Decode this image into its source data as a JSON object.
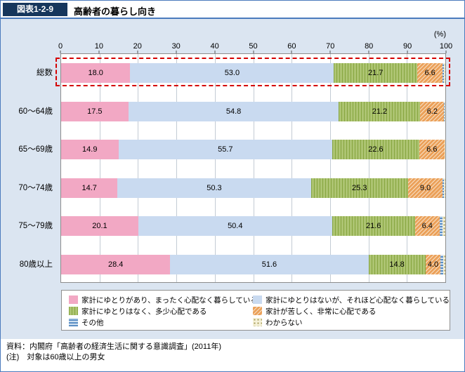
{
  "page": {
    "figure_label": "図表1-2-9",
    "title": "高齢者の暮らし向き"
  },
  "chart_data": {
    "type": "bar",
    "stacked": true,
    "orientation": "horizontal",
    "unit": "(%)",
    "xlim": [
      0,
      100
    ],
    "x_ticks": [
      0,
      10,
      20,
      30,
      40,
      50,
      60,
      70,
      80,
      90,
      100
    ],
    "grid": true,
    "legend_position": "bottom",
    "categories": [
      "総数",
      "60〜64歳",
      "65〜69歳",
      "70〜74歳",
      "75〜79歳",
      "80歳以上"
    ],
    "series": [
      {
        "name": "家計にゆとりがあり、まったく心配なく暮らしている",
        "class": "seg-pink",
        "color": "#f2a8c4",
        "values": [
          18.0,
          17.5,
          14.9,
          14.7,
          20.1,
          28.4
        ]
      },
      {
        "name": "家計にゆとりはないが、それほど心配なく暮らしている",
        "class": "seg-blue",
        "color": "#c9daf0",
        "values": [
          53.0,
          54.8,
          55.7,
          50.3,
          50.4,
          51.6
        ]
      },
      {
        "name": "家計にゆとりはなく、多少心配である",
        "class": "seg-green",
        "color": "#9fb857",
        "values": [
          21.7,
          21.2,
          22.6,
          25.3,
          21.6,
          14.8
        ]
      },
      {
        "name": "家計が苦しく、非常に心配である",
        "class": "seg-orange",
        "color": "#eba15a",
        "values": [
          6.6,
          6.2,
          6.6,
          9.0,
          6.4,
          4.0
        ]
      }
    ],
    "unlabeled_series": [
      {
        "name": "その他",
        "class": "seg-other",
        "color": "#5b8ec4"
      },
      {
        "name": "わからない",
        "class": "seg-unknown",
        "color": "#a59a58"
      }
    ],
    "highlight_category": "総数",
    "highlight_style": "red-dashed-box",
    "highlight_color": "#d40000"
  },
  "legend": {
    "items": [
      {
        "class": "seg-pink",
        "label": "家計にゆとりがあり、まったく心配なく暮らしている"
      },
      {
        "class": "seg-blue",
        "label": "家計にゆとりはないが、それほど心配なく暮らしている"
      },
      {
        "class": "seg-green",
        "label": "家計にゆとりはなく、多少心配である"
      },
      {
        "class": "seg-orange",
        "label": "家計が苦しく、非常に心配である"
      },
      {
        "class": "seg-other",
        "label": "その他"
      },
      {
        "class": "seg-unknown",
        "label": "わからない"
      }
    ]
  },
  "footer": {
    "source": "資料：内閣府「高齢者の経済生活に関する意識調査」(2011年)",
    "note": "(注)　対象は60歳以上の男女"
  }
}
